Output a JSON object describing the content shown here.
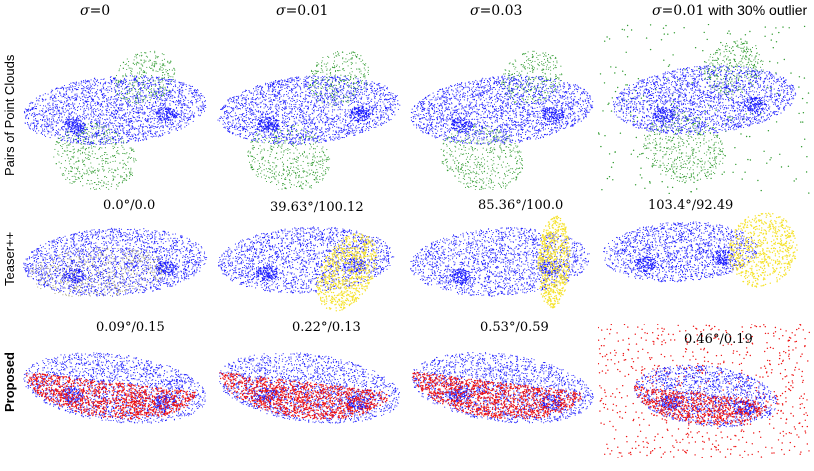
{
  "column_headers": [
    {
      "symbol": "σ",
      "value": "=0",
      "suffix": ""
    },
    {
      "symbol": "σ",
      "value": "=0.01",
      "suffix": ""
    },
    {
      "symbol": "σ",
      "value": "=0.03",
      "suffix": ""
    },
    {
      "symbol": "σ",
      "value": "=0.01",
      "suffix": " with 30% outlier"
    }
  ],
  "row_labels": [
    "Pairs of Point Clouds",
    "Teaser++",
    "Proposed"
  ],
  "teaser_results": [
    "0.0°/0.0",
    "39.63°/100.12",
    "85.36°/100.0",
    "103.4°/92.49"
  ],
  "proposed_results": [
    "0.09°/0.15",
    "0.22°/0.13",
    "0.53°/0.59",
    "0.46°/0.19"
  ],
  "colors": {
    "target_cloud": "#1a1aff",
    "source_cloud": "#2e9a2e",
    "teaser_estimate": "#f5e22a",
    "proposed_estimate": "#ee1111"
  }
}
